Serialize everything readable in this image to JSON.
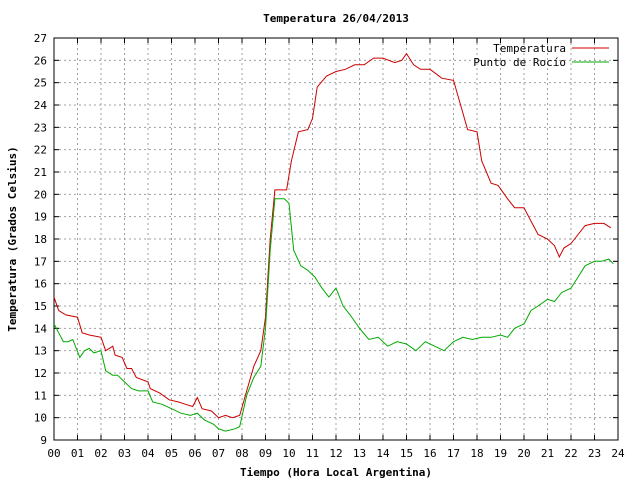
{
  "chart_data": {
    "type": "line",
    "title": "Temperatura 26/04/2013",
    "xlabel": "Tiempo (Hora Local Argentina)",
    "ylabel": "Temperatura (Grados Celsius)",
    "xlim": [
      0,
      24
    ],
    "ylim": [
      9,
      27
    ],
    "x_tick_labels": [
      "00",
      "01",
      "02",
      "03",
      "04",
      "05",
      "06",
      "07",
      "08",
      "09",
      "10",
      "11",
      "12",
      "13",
      "14",
      "15",
      "16",
      "17",
      "18",
      "19",
      "20",
      "21",
      "22",
      "23",
      "24"
    ],
    "y_tick_labels": [
      "9",
      "10",
      "11",
      "12",
      "13",
      "14",
      "15",
      "16",
      "17",
      "18",
      "19",
      "20",
      "21",
      "22",
      "23",
      "24",
      "25",
      "26",
      "27"
    ],
    "grid": true,
    "legend_position": "top-right",
    "series": [
      {
        "name": "Temperatura",
        "color": "#cc0000",
        "points": [
          [
            0.0,
            15.4
          ],
          [
            0.2,
            14.8
          ],
          [
            0.5,
            14.6
          ],
          [
            1.0,
            14.5
          ],
          [
            1.2,
            13.8
          ],
          [
            1.5,
            13.7
          ],
          [
            2.0,
            13.6
          ],
          [
            2.2,
            13.0
          ],
          [
            2.5,
            13.2
          ],
          [
            2.6,
            12.8
          ],
          [
            2.9,
            12.7
          ],
          [
            3.1,
            12.2
          ],
          [
            3.3,
            12.2
          ],
          [
            3.5,
            11.8
          ],
          [
            4.0,
            11.6
          ],
          [
            4.1,
            11.3
          ],
          [
            4.5,
            11.1
          ],
          [
            4.9,
            10.8
          ],
          [
            5.3,
            10.7
          ],
          [
            5.6,
            10.6
          ],
          [
            5.9,
            10.5
          ],
          [
            6.1,
            10.9
          ],
          [
            6.3,
            10.4
          ],
          [
            6.7,
            10.3
          ],
          [
            7.0,
            10.0
          ],
          [
            7.3,
            10.1
          ],
          [
            7.6,
            10.0
          ],
          [
            7.9,
            10.1
          ],
          [
            8.2,
            11.2
          ],
          [
            8.5,
            12.3
          ],
          [
            8.8,
            13.0
          ],
          [
            9.0,
            14.5
          ],
          [
            9.2,
            18.0
          ],
          [
            9.4,
            20.2
          ],
          [
            9.7,
            20.2
          ],
          [
            9.9,
            20.2
          ],
          [
            10.1,
            21.5
          ],
          [
            10.4,
            22.8
          ],
          [
            10.8,
            22.9
          ],
          [
            11.0,
            23.4
          ],
          [
            11.2,
            24.8
          ],
          [
            11.6,
            25.3
          ],
          [
            12.0,
            25.5
          ],
          [
            12.4,
            25.6
          ],
          [
            12.8,
            25.8
          ],
          [
            13.2,
            25.8
          ],
          [
            13.6,
            26.1
          ],
          [
            14.0,
            26.1
          ],
          [
            14.5,
            25.9
          ],
          [
            14.8,
            26.0
          ],
          [
            15.0,
            26.3
          ],
          [
            15.3,
            25.8
          ],
          [
            15.6,
            25.6
          ],
          [
            16.0,
            25.6
          ],
          [
            16.5,
            25.2
          ],
          [
            17.0,
            25.1
          ],
          [
            17.3,
            24.0
          ],
          [
            17.6,
            22.9
          ],
          [
            18.0,
            22.8
          ],
          [
            18.2,
            21.5
          ],
          [
            18.6,
            20.5
          ],
          [
            18.9,
            20.4
          ],
          [
            19.3,
            19.8
          ],
          [
            19.6,
            19.4
          ],
          [
            20.0,
            19.4
          ],
          [
            20.3,
            18.8
          ],
          [
            20.6,
            18.2
          ],
          [
            21.0,
            18.0
          ],
          [
            21.3,
            17.7
          ],
          [
            21.5,
            17.2
          ],
          [
            21.7,
            17.6
          ],
          [
            22.0,
            17.8
          ],
          [
            22.3,
            18.2
          ],
          [
            22.6,
            18.6
          ],
          [
            23.0,
            18.7
          ],
          [
            23.4,
            18.7
          ],
          [
            23.7,
            18.5
          ]
        ]
      },
      {
        "name": "Punto de Rocío",
        "color": "#00aa00",
        "points": [
          [
            0.0,
            14.2
          ],
          [
            0.2,
            13.8
          ],
          [
            0.4,
            13.4
          ],
          [
            0.6,
            13.4
          ],
          [
            0.8,
            13.5
          ],
          [
            1.1,
            12.7
          ],
          [
            1.3,
            13.0
          ],
          [
            1.5,
            13.1
          ],
          [
            1.7,
            12.9
          ],
          [
            2.0,
            13.0
          ],
          [
            2.2,
            12.1
          ],
          [
            2.5,
            11.9
          ],
          [
            2.7,
            11.9
          ],
          [
            3.0,
            11.6
          ],
          [
            3.3,
            11.3
          ],
          [
            3.6,
            11.2
          ],
          [
            4.0,
            11.2
          ],
          [
            4.2,
            10.7
          ],
          [
            4.6,
            10.6
          ],
          [
            5.0,
            10.4
          ],
          [
            5.4,
            10.2
          ],
          [
            5.8,
            10.1
          ],
          [
            6.1,
            10.2
          ],
          [
            6.4,
            9.9
          ],
          [
            6.8,
            9.7
          ],
          [
            7.0,
            9.5
          ],
          [
            7.3,
            9.4
          ],
          [
            7.7,
            9.5
          ],
          [
            7.9,
            9.6
          ],
          [
            8.2,
            11.0
          ],
          [
            8.5,
            11.8
          ],
          [
            8.8,
            12.3
          ],
          [
            9.0,
            14.0
          ],
          [
            9.2,
            17.5
          ],
          [
            9.4,
            19.8
          ],
          [
            9.8,
            19.8
          ],
          [
            10.0,
            19.6
          ],
          [
            10.2,
            17.5
          ],
          [
            10.5,
            16.8
          ],
          [
            10.8,
            16.6
          ],
          [
            11.1,
            16.3
          ],
          [
            11.4,
            15.8
          ],
          [
            11.7,
            15.4
          ],
          [
            12.0,
            15.8
          ],
          [
            12.3,
            15.0
          ],
          [
            12.6,
            14.6
          ],
          [
            13.0,
            14.0
          ],
          [
            13.4,
            13.5
          ],
          [
            13.8,
            13.6
          ],
          [
            14.2,
            13.2
          ],
          [
            14.6,
            13.4
          ],
          [
            15.0,
            13.3
          ],
          [
            15.4,
            13.0
          ],
          [
            15.8,
            13.4
          ],
          [
            16.2,
            13.2
          ],
          [
            16.6,
            13.0
          ],
          [
            17.0,
            13.4
          ],
          [
            17.4,
            13.6
          ],
          [
            17.8,
            13.5
          ],
          [
            18.2,
            13.6
          ],
          [
            18.6,
            13.6
          ],
          [
            19.0,
            13.7
          ],
          [
            19.3,
            13.6
          ],
          [
            19.6,
            14.0
          ],
          [
            20.0,
            14.2
          ],
          [
            20.3,
            14.8
          ],
          [
            20.6,
            15.0
          ],
          [
            21.0,
            15.3
          ],
          [
            21.3,
            15.2
          ],
          [
            21.6,
            15.6
          ],
          [
            22.0,
            15.8
          ],
          [
            22.3,
            16.3
          ],
          [
            22.6,
            16.8
          ],
          [
            23.0,
            17.0
          ],
          [
            23.3,
            17.0
          ],
          [
            23.6,
            17.1
          ],
          [
            23.8,
            16.9
          ]
        ]
      }
    ]
  }
}
